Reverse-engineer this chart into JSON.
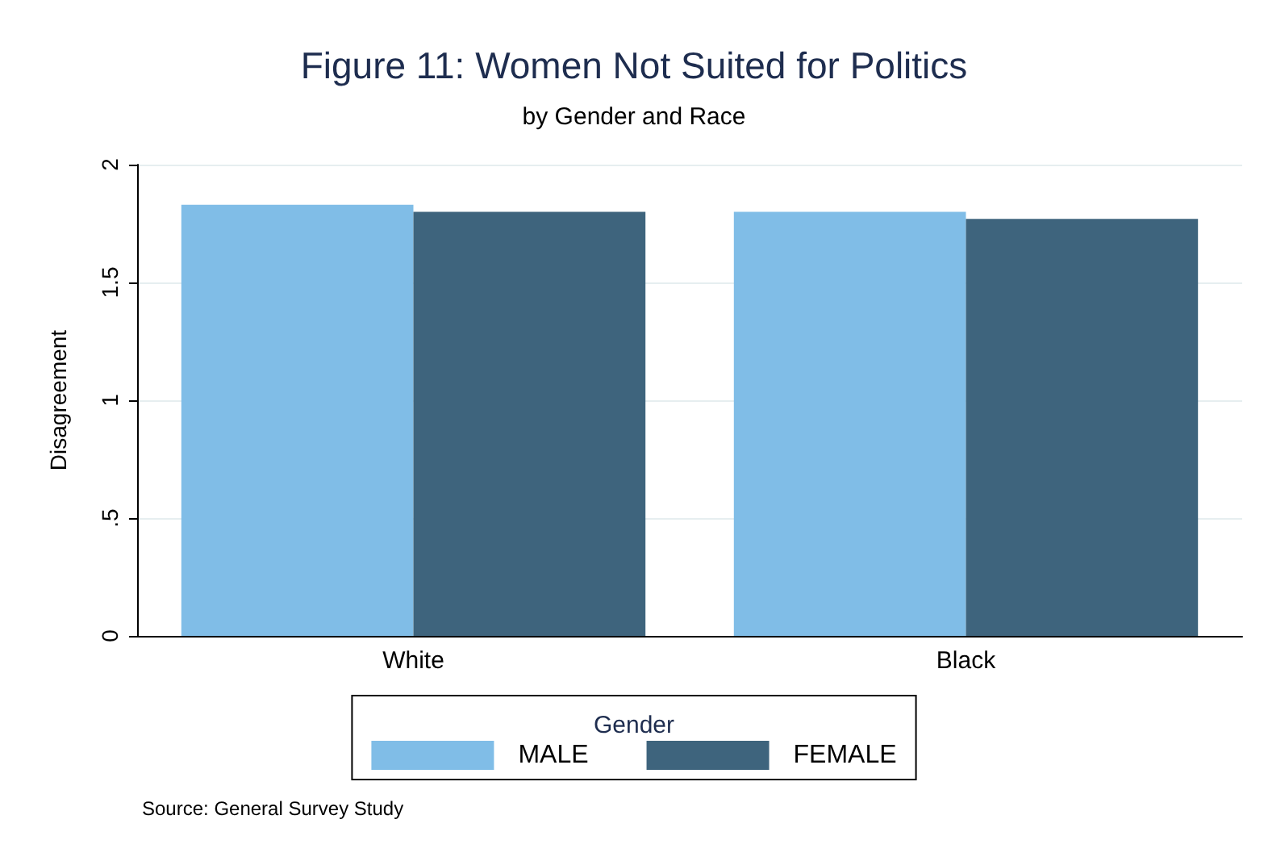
{
  "chart_data": {
    "type": "bar",
    "title": "Figure 11: Women Not Suited for Politics",
    "subtitle": "by Gender and Race",
    "ylabel": "Disagreement",
    "legend_title": "Gender",
    "annotations": [
      "Source: General Survey Study"
    ],
    "categories": [
      "White",
      "Black"
    ],
    "series": [
      {
        "name": "MALE",
        "color": "#80bde7",
        "values": [
          1.83,
          1.8
        ]
      },
      {
        "name": "FEMALE",
        "color": "#3e647d",
        "values": [
          1.8,
          1.77
        ]
      }
    ],
    "ylim": [
      0,
      2
    ],
    "yticks": [
      0,
      {
        "value": 0.5,
        "label": ".5"
      },
      1,
      1.5,
      2
    ],
    "grid": "y",
    "legend": "bottom"
  }
}
